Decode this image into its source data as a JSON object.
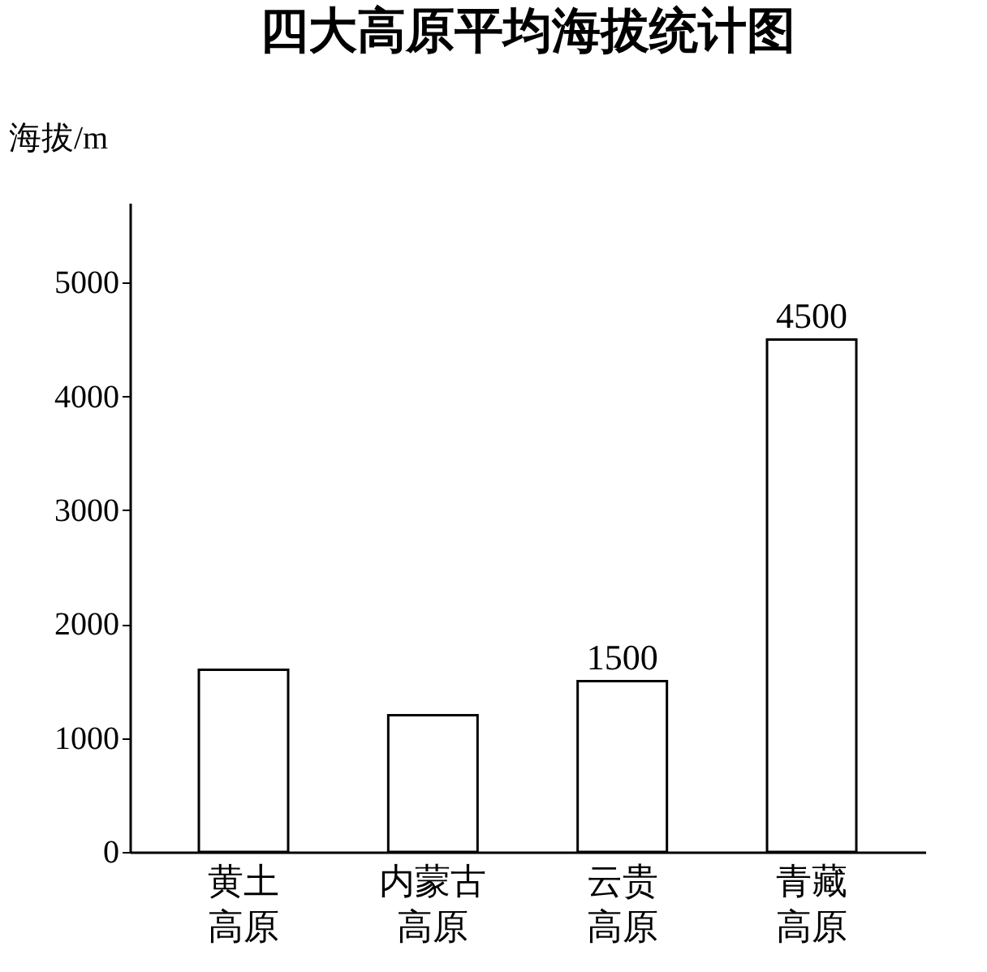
{
  "chart_data": {
    "type": "bar",
    "title": "四大高原平均海拔统计图",
    "ylabel": "海拔/m",
    "categories": [
      "黄土高原",
      "内蒙古高原",
      "云贵高原",
      "青藏高原"
    ],
    "values": [
      1600,
      1200,
      1500,
      4500
    ],
    "value_labels": [
      null,
      null,
      "1500",
      "4500"
    ],
    "color": "#ffffff",
    "ylim": [
      0,
      5700
    ],
    "yticks": [
      0,
      1000,
      2000,
      3000,
      4000,
      5000
    ],
    "grid": false
  }
}
